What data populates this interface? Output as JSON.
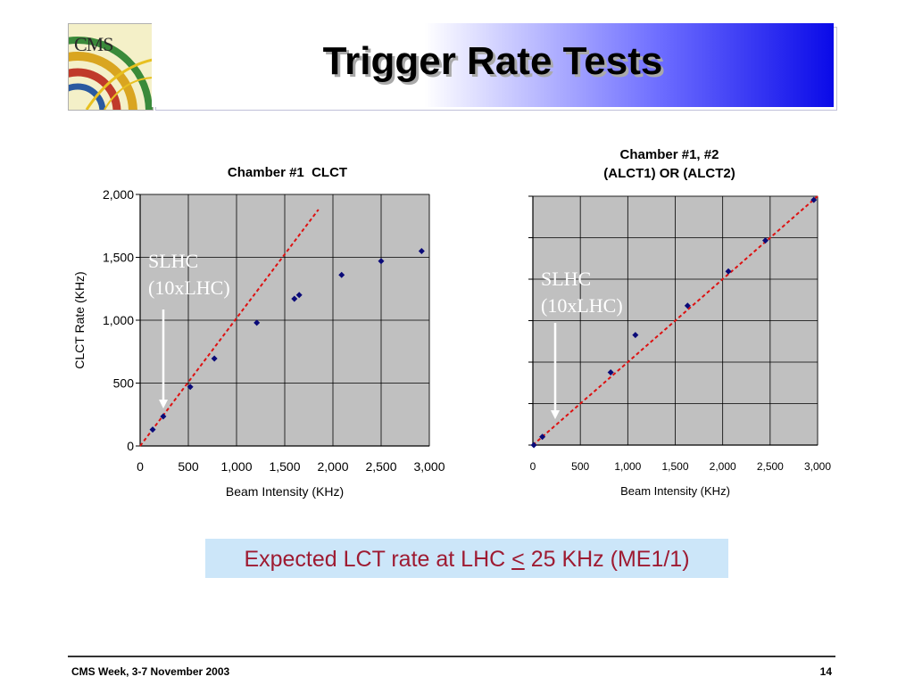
{
  "title": "Trigger Rate Tests",
  "logo": {
    "text": "CMS"
  },
  "chart_data": [
    {
      "type": "scatter",
      "title": "Chamber #1  CLCT",
      "xlabel": "Beam Intensity (KHz)",
      "ylabel": "CLCT Rate (KHz)",
      "xlim": [
        0,
        3000
      ],
      "ylim": [
        0,
        2000
      ],
      "xticks": [
        0,
        500,
        1000,
        1500,
        2000,
        2500,
        3000
      ],
      "xtick_labels": [
        "0",
        "500",
        "1,000",
        "1,500",
        "2,000",
        "2,500",
        "3,000"
      ],
      "yticks": [
        0,
        500,
        1000,
        1500,
        2000
      ],
      "ytick_labels": [
        "0",
        "500",
        "1,000",
        "1,500",
        "2,000"
      ],
      "grid": true,
      "points": [
        {
          "x": 130,
          "y": 130
        },
        {
          "x": 240,
          "y": 235
        },
        {
          "x": 520,
          "y": 470
        },
        {
          "x": 770,
          "y": 695
        },
        {
          "x": 1210,
          "y": 980
        },
        {
          "x": 1600,
          "y": 1170
        },
        {
          "x": 1650,
          "y": 1200
        },
        {
          "x": 2090,
          "y": 1360
        },
        {
          "x": 2500,
          "y": 1470
        },
        {
          "x": 2920,
          "y": 1550
        }
      ],
      "reference_line": {
        "x": [
          0,
          1850
        ],
        "y": [
          0,
          1880
        ],
        "color": "#dd1111",
        "style": "dashed"
      },
      "annotation": {
        "line1": "SLHC",
        "line2": "(10xLHC)"
      },
      "marker_color": "#0a0a78",
      "plot_background": "#c0c0c0"
    },
    {
      "type": "scatter",
      "title": "Chamber #1, #2",
      "subtitle": "(ALCT1) OR (ALCT2)",
      "xlabel": "Beam Intensity (KHz)",
      "xlim": [
        0,
        3000
      ],
      "xticks": [
        0,
        500,
        1000,
        1500,
        2000,
        2500,
        3000
      ],
      "xtick_labels": [
        "0",
        "500",
        "1,000",
        "1,500",
        "2,000",
        "2,500",
        "3,000"
      ],
      "y_gridlines": 6,
      "grid": true,
      "points": [
        {
          "x": 10,
          "y": 0.0
        },
        {
          "x": 100,
          "y": 0.033
        },
        {
          "x": 820,
          "y": 0.292
        },
        {
          "x": 1080,
          "y": 0.442
        },
        {
          "x": 1630,
          "y": 0.56
        },
        {
          "x": 2060,
          "y": 0.698
        },
        {
          "x": 2450,
          "y": 0.822
        },
        {
          "x": 2960,
          "y": 0.985
        }
      ],
      "reference_line": {
        "x": [
          0,
          3000
        ],
        "y": [
          0,
          1.0
        ],
        "color": "#dd1111",
        "style": "dashed"
      },
      "annotation": {
        "line1": "SLHC",
        "line2": "(10xLHC)"
      },
      "marker_color": "#0a0a78",
      "plot_background": "#c0c0c0"
    }
  ],
  "callout": {
    "before": "Expected LCT rate at LHC ",
    "symbol": "<",
    "after": " 25 KHz (ME1/1)"
  },
  "footer": {
    "left": "CMS Week, 3-7 November 2003",
    "page_number": "14"
  }
}
